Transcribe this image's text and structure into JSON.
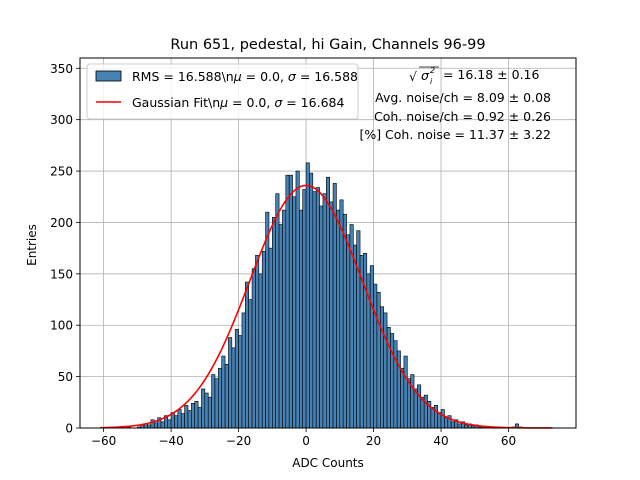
{
  "chart_data": {
    "type": "bar",
    "title": "Run 651, pedestal, hi Gain, Channels 96-99",
    "xlabel": "ADC Counts",
    "ylabel": "Entries",
    "xlim": [
      -67,
      80
    ],
    "ylim": [
      0,
      360
    ],
    "xticks": [
      -60,
      -40,
      -20,
      0,
      20,
      40,
      60
    ],
    "yticks": [
      0,
      50,
      100,
      150,
      200,
      250,
      300,
      350
    ],
    "grid": true,
    "legend_position": "top-left",
    "bin_width": 1,
    "series": [
      {
        "name": "RMS = 16.588\\n$\\mu$ = 0.0, $\\sigma$ = 16.588",
        "kind": "histogram",
        "color": "#4682b4",
        "edgecolor": "#000000",
        "points": [
          [
            -61,
            0
          ],
          [
            -60,
            0
          ],
          [
            -59,
            0
          ],
          [
            -58,
            0
          ],
          [
            -57,
            0
          ],
          [
            -56,
            0
          ],
          [
            -55,
            0
          ],
          [
            -54,
            0
          ],
          [
            -53,
            1
          ],
          [
            -52,
            0
          ],
          [
            -51,
            0
          ],
          [
            -50,
            1
          ],
          [
            -49,
            3
          ],
          [
            -48,
            4
          ],
          [
            -47,
            3
          ],
          [
            -46,
            8
          ],
          [
            -45,
            5
          ],
          [
            -44,
            10
          ],
          [
            -43,
            6
          ],
          [
            -42,
            12
          ],
          [
            -41,
            8
          ],
          [
            -40,
            15
          ],
          [
            -39,
            12
          ],
          [
            -38,
            18
          ],
          [
            -37,
            14
          ],
          [
            -36,
            22
          ],
          [
            -35,
            17
          ],
          [
            -34,
            24
          ],
          [
            -33,
            26
          ],
          [
            -32,
            20
          ],
          [
            -31,
            38
          ],
          [
            -30,
            34
          ],
          [
            -29,
            30
          ],
          [
            -28,
            52
          ],
          [
            -27,
            48
          ],
          [
            -26,
            58
          ],
          [
            -25,
            70
          ],
          [
            -24,
            62
          ],
          [
            -23,
            88
          ],
          [
            -22,
            78
          ],
          [
            -21,
            96
          ],
          [
            -20,
            90
          ],
          [
            -19,
            112
          ],
          [
            -18,
            142
          ],
          [
            -17,
            125
          ],
          [
            -16,
            155
          ],
          [
            -15,
            168
          ],
          [
            -14,
            150
          ],
          [
            -13,
            172
          ],
          [
            -12,
            210
          ],
          [
            -11,
            175
          ],
          [
            -10,
            205
          ],
          [
            -9,
            228
          ],
          [
            -8,
            198
          ],
          [
            -7,
            212
          ],
          [
            -6,
            246
          ],
          [
            -5,
            246
          ],
          [
            -4,
            225
          ],
          [
            -3,
            250
          ],
          [
            -2,
            212
          ],
          [
            -1,
            232
          ],
          [
            0,
            258
          ],
          [
            1,
            248
          ],
          [
            2,
            230
          ],
          [
            3,
            234
          ],
          [
            4,
            216
          ],
          [
            5,
            228
          ],
          [
            6,
            244
          ],
          [
            7,
            220
          ],
          [
            8,
            238
          ],
          [
            9,
            212
          ],
          [
            10,
            222
          ],
          [
            11,
            208
          ],
          [
            12,
            188
          ],
          [
            13,
            198
          ],
          [
            14,
            178
          ],
          [
            15,
            192
          ],
          [
            16,
            168
          ],
          [
            17,
            170
          ],
          [
            18,
            150
          ],
          [
            19,
            158
          ],
          [
            20,
            140
          ],
          [
            21,
            132
          ],
          [
            22,
            118
          ],
          [
            23,
            112
          ],
          [
            24,
            98
          ],
          [
            25,
            92
          ],
          [
            26,
            85
          ],
          [
            27,
            75
          ],
          [
            28,
            58
          ],
          [
            29,
            70
          ],
          [
            30,
            48
          ],
          [
            31,
            52
          ],
          [
            32,
            38
          ],
          [
            33,
            42
          ],
          [
            34,
            30
          ],
          [
            35,
            32
          ],
          [
            36,
            26
          ],
          [
            37,
            20
          ],
          [
            38,
            22
          ],
          [
            39,
            15
          ],
          [
            40,
            18
          ],
          [
            41,
            10
          ],
          [
            42,
            12
          ],
          [
            43,
            6
          ],
          [
            44,
            8
          ],
          [
            45,
            4
          ],
          [
            46,
            6
          ],
          [
            47,
            3
          ],
          [
            48,
            4
          ],
          [
            49,
            2
          ],
          [
            50,
            3
          ],
          [
            51,
            1
          ],
          [
            52,
            2
          ],
          [
            53,
            1
          ],
          [
            54,
            1
          ],
          [
            55,
            0
          ],
          [
            56,
            0
          ],
          [
            57,
            0
          ],
          [
            58,
            0
          ],
          [
            59,
            0
          ],
          [
            60,
            0
          ],
          [
            61,
            1
          ],
          [
            62,
            4
          ],
          [
            63,
            1
          ],
          [
            64,
            0
          ],
          [
            65,
            0
          ],
          [
            66,
            0
          ],
          [
            67,
            0
          ],
          [
            68,
            0
          ],
          [
            69,
            0
          ],
          [
            70,
            0
          ],
          [
            71,
            0
          ],
          [
            72,
            0
          ]
        ]
      },
      {
        "name": "Gaussian Fit\\n$\\mu$ = 0.0, $\\sigma$ = 16.684",
        "kind": "line",
        "color": "#ff0000",
        "mu": 0.0,
        "sigma": 16.684,
        "peak": 236,
        "x_range": [
          -61,
          73
        ]
      }
    ],
    "annotations": [
      {
        "id": "sqrt",
        "prefix": "",
        "suffix": " = 16.18 ± 0.16"
      },
      {
        "id": "avg",
        "text": "Avg. noise/ch = 8.09 ± 0.08"
      },
      {
        "id": "coh",
        "text": "Coh. noise/ch = 0.92 ± 0.26"
      },
      {
        "id": "pct",
        "text": "[%] Coh. noise = 11.37 ± 3.22"
      }
    ],
    "legend_entries": [
      {
        "line1": "RMS = 16.588\\nμ = 0.0, σ = 16.588"
      },
      {
        "line1": "Gaussian Fit\\nμ = 0.0, σ = 16.684"
      }
    ]
  }
}
